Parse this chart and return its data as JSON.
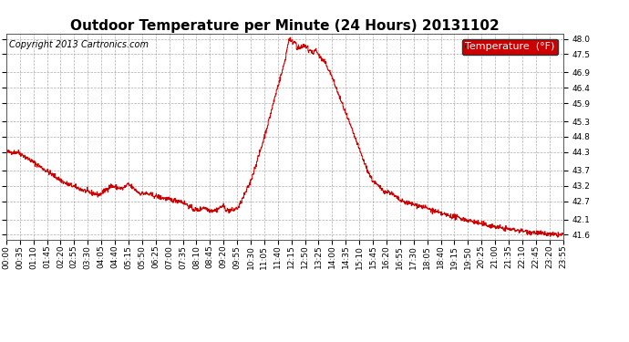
{
  "title": "Outdoor Temperature per Minute (24 Hours) 20131102",
  "copyright": "Copyright 2013 Cartronics.com",
  "legend_label": "Temperature  (°F)",
  "line_color": "#cc0000",
  "background_color": "#ffffff",
  "plot_bg_color": "#ffffff",
  "grid_color": "#999999",
  "ylim": [
    41.45,
    48.15
  ],
  "yticks": [
    41.6,
    42.1,
    42.7,
    43.2,
    43.7,
    44.3,
    44.8,
    45.3,
    45.9,
    46.4,
    46.9,
    47.5,
    48.0
  ],
  "xtick_labels": [
    "00:00",
    "00:35",
    "01:10",
    "01:45",
    "02:20",
    "02:55",
    "03:30",
    "04:05",
    "04:40",
    "05:15",
    "05:50",
    "06:25",
    "07:00",
    "07:35",
    "08:10",
    "08:45",
    "09:20",
    "09:55",
    "10:30",
    "11:05",
    "11:40",
    "12:15",
    "12:50",
    "13:25",
    "14:00",
    "14:35",
    "15:10",
    "15:45",
    "16:20",
    "16:55",
    "17:30",
    "18:05",
    "18:40",
    "19:15",
    "19:50",
    "20:25",
    "21:00",
    "21:35",
    "22:10",
    "22:45",
    "23:20",
    "23:55"
  ],
  "title_fontsize": 11,
  "tick_fontsize": 6.5,
  "legend_fontsize": 8,
  "copyright_fontsize": 7
}
